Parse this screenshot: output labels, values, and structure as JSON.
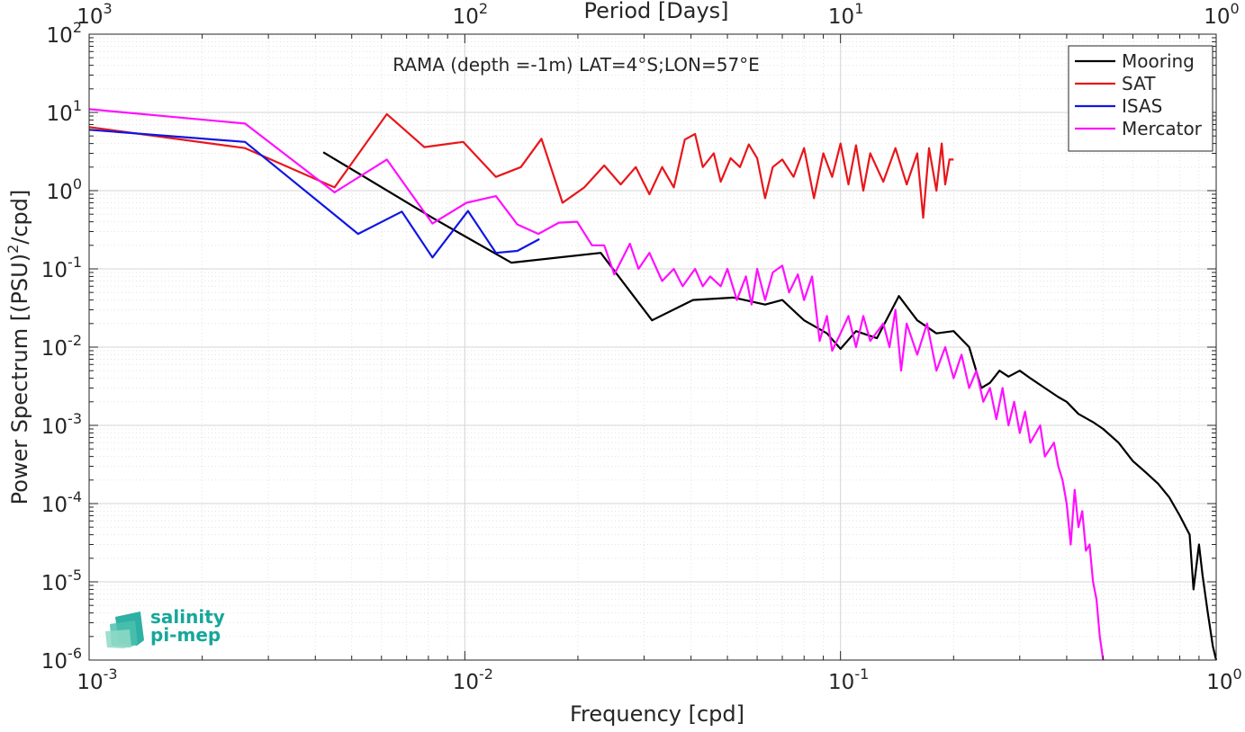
{
  "chart_data": {
    "type": "line",
    "title": "",
    "annotation": "RAMA (depth =-1m) LAT=4°S;LON=57°E",
    "xlabel": "Frequency [cpd]",
    "ylabel_main": "Power Spectrum [(PSU)",
    "ylabel_sup": "2",
    "ylabel_end": "/cpd]",
    "x2label": "Period [Days]",
    "xscale": "log",
    "yscale": "log",
    "xlim": [
      0.001,
      1
    ],
    "ylim": [
      1e-06,
      100
    ],
    "grid": true,
    "legend_position": "top-right",
    "x_ticks": [
      {
        "value": 0.001,
        "base": "10",
        "exp": "-3"
      },
      {
        "value": 0.01,
        "base": "10",
        "exp": "-2"
      },
      {
        "value": 0.1,
        "base": "10",
        "exp": "-1"
      },
      {
        "value": 1,
        "base": "10",
        "exp": "0"
      }
    ],
    "y_ticks": [
      {
        "value": 1e-06,
        "base": "10",
        "exp": "-6"
      },
      {
        "value": 1e-05,
        "base": "10",
        "exp": "-5"
      },
      {
        "value": 0.0001,
        "base": "10",
        "exp": "-4"
      },
      {
        "value": 0.001,
        "base": "10",
        "exp": "-3"
      },
      {
        "value": 0.01,
        "base": "10",
        "exp": "-2"
      },
      {
        "value": 0.1,
        "base": "10",
        "exp": "-1"
      },
      {
        "value": 1,
        "base": "10",
        "exp": "0"
      },
      {
        "value": 10,
        "base": "10",
        "exp": "1"
      },
      {
        "value": 100,
        "base": "10",
        "exp": "2"
      }
    ],
    "top_ticks": [
      {
        "freq": 0.001,
        "base": "10",
        "exp": "3"
      },
      {
        "freq": 0.01,
        "base": "10",
        "exp": "2"
      },
      {
        "freq": 0.1,
        "base": "10",
        "exp": "1"
      },
      {
        "freq": 1,
        "base": "10",
        "exp": "0"
      }
    ],
    "series": [
      {
        "name": "Mooring",
        "color": "#000000",
        "points": [
          [
            0.0042,
            3.1
          ],
          [
            0.0082,
            0.45
          ],
          [
            0.0133,
            0.12
          ],
          [
            0.023,
            0.16
          ],
          [
            0.0315,
            0.022
          ],
          [
            0.0405,
            0.04
          ],
          [
            0.052,
            0.043
          ],
          [
            0.063,
            0.035
          ],
          [
            0.07,
            0.04
          ],
          [
            0.08,
            0.022
          ],
          [
            0.092,
            0.015
          ],
          [
            0.1,
            0.0095
          ],
          [
            0.11,
            0.016
          ],
          [
            0.125,
            0.013
          ],
          [
            0.143,
            0.045
          ],
          [
            0.16,
            0.022
          ],
          [
            0.18,
            0.015
          ],
          [
            0.2,
            0.016
          ],
          [
            0.22,
            0.01
          ],
          [
            0.237,
            0.003
          ],
          [
            0.25,
            0.0035
          ],
          [
            0.265,
            0.005
          ],
          [
            0.28,
            0.0042
          ],
          [
            0.3,
            0.005
          ],
          [
            0.32,
            0.004
          ],
          [
            0.35,
            0.003
          ],
          [
            0.38,
            0.0023
          ],
          [
            0.4,
            0.002
          ],
          [
            0.43,
            0.0014
          ],
          [
            0.47,
            0.0011
          ],
          [
            0.5,
            0.0009
          ],
          [
            0.55,
            0.0006
          ],
          [
            0.6,
            0.00035
          ],
          [
            0.65,
            0.00025
          ],
          [
            0.7,
            0.00018
          ],
          [
            0.75,
            0.00012
          ],
          [
            0.8,
            7e-05
          ],
          [
            0.85,
            4e-05
          ],
          [
            0.87,
            8e-06
          ],
          [
            0.9,
            3e-05
          ],
          [
            0.92,
            1.2e-05
          ],
          [
            0.95,
            4e-06
          ],
          [
            0.98,
            1.5e-06
          ],
          [
            1.0,
            1e-06
          ]
        ]
      },
      {
        "name": "SAT",
        "color": "#e8161b",
        "points": [
          [
            0.001,
            6.5
          ],
          [
            0.0026,
            3.5
          ],
          [
            0.0045,
            1.1
          ],
          [
            0.0062,
            9.5
          ],
          [
            0.0078,
            3.6
          ],
          [
            0.0099,
            4.2
          ],
          [
            0.0121,
            1.5
          ],
          [
            0.0141,
            2.0
          ],
          [
            0.016,
            4.6
          ],
          [
            0.0182,
            0.7
          ],
          [
            0.0208,
            1.1
          ],
          [
            0.0235,
            2.1
          ],
          [
            0.026,
            1.2
          ],
          [
            0.0285,
            2.0
          ],
          [
            0.031,
            0.9
          ],
          [
            0.0335,
            2.0
          ],
          [
            0.036,
            1.1
          ],
          [
            0.0385,
            4.5
          ],
          [
            0.041,
            5.3
          ],
          [
            0.043,
            2.0
          ],
          [
            0.046,
            3.0
          ],
          [
            0.048,
            1.3
          ],
          [
            0.051,
            2.6
          ],
          [
            0.054,
            2.0
          ],
          [
            0.057,
            3.9
          ],
          [
            0.06,
            2.6
          ],
          [
            0.063,
            0.8
          ],
          [
            0.066,
            2.0
          ],
          [
            0.07,
            2.5
          ],
          [
            0.075,
            1.5
          ],
          [
            0.08,
            3.5
          ],
          [
            0.085,
            0.8
          ],
          [
            0.09,
            3.0
          ],
          [
            0.095,
            1.5
          ],
          [
            0.1,
            4.0
          ],
          [
            0.105,
            1.2
          ],
          [
            0.11,
            3.8
          ],
          [
            0.115,
            1.0
          ],
          [
            0.12,
            3.0
          ],
          [
            0.13,
            1.3
          ],
          [
            0.14,
            3.5
          ],
          [
            0.15,
            1.2
          ],
          [
            0.16,
            3.0
          ],
          [
            0.166,
            0.45
          ],
          [
            0.172,
            3.5
          ],
          [
            0.18,
            1.0
          ],
          [
            0.186,
            4.0
          ],
          [
            0.19,
            1.2
          ],
          [
            0.195,
            2.5
          ],
          [
            0.2,
            2.5
          ]
        ]
      },
      {
        "name": "ISAS",
        "color": "#1016e3",
        "points": [
          [
            0.001,
            6.0
          ],
          [
            0.0026,
            4.2
          ],
          [
            0.0052,
            0.28
          ],
          [
            0.0068,
            0.54
          ],
          [
            0.0082,
            0.14
          ],
          [
            0.0102,
            0.55
          ],
          [
            0.0121,
            0.16
          ],
          [
            0.0138,
            0.17
          ],
          [
            0.0158,
            0.24
          ]
        ]
      },
      {
        "name": "Mercator",
        "color": "#ff10ff",
        "points": [
          [
            0.001,
            11.0
          ],
          [
            0.0026,
            7.2
          ],
          [
            0.0045,
            0.95
          ],
          [
            0.0062,
            2.5
          ],
          [
            0.0082,
            0.38
          ],
          [
            0.0101,
            0.7
          ],
          [
            0.0121,
            0.85
          ],
          [
            0.0138,
            0.37
          ],
          [
            0.0157,
            0.28
          ],
          [
            0.0178,
            0.39
          ],
          [
            0.0199,
            0.4
          ],
          [
            0.0218,
            0.2
          ],
          [
            0.0235,
            0.2
          ],
          [
            0.025,
            0.085
          ],
          [
            0.0275,
            0.21
          ],
          [
            0.029,
            0.1
          ],
          [
            0.031,
            0.16
          ],
          [
            0.0335,
            0.07
          ],
          [
            0.036,
            0.1
          ],
          [
            0.038,
            0.06
          ],
          [
            0.041,
            0.1
          ],
          [
            0.043,
            0.06
          ],
          [
            0.045,
            0.08
          ],
          [
            0.048,
            0.06
          ],
          [
            0.05,
            0.1
          ],
          [
            0.053,
            0.04
          ],
          [
            0.056,
            0.08
          ],
          [
            0.058,
            0.035
          ],
          [
            0.06,
            0.1
          ],
          [
            0.063,
            0.04
          ],
          [
            0.066,
            0.09
          ],
          [
            0.07,
            0.11
          ],
          [
            0.073,
            0.05
          ],
          [
            0.077,
            0.085
          ],
          [
            0.08,
            0.04
          ],
          [
            0.084,
            0.08
          ],
          [
            0.088,
            0.012
          ],
          [
            0.092,
            0.025
          ],
          [
            0.095,
            0.009
          ],
          [
            0.1,
            0.015
          ],
          [
            0.105,
            0.025
          ],
          [
            0.11,
            0.01
          ],
          [
            0.115,
            0.025
          ],
          [
            0.12,
            0.012
          ],
          [
            0.13,
            0.02
          ],
          [
            0.135,
            0.01
          ],
          [
            0.14,
            0.03
          ],
          [
            0.145,
            0.005
          ],
          [
            0.15,
            0.02
          ],
          [
            0.16,
            0.008
          ],
          [
            0.17,
            0.02
          ],
          [
            0.18,
            0.005
          ],
          [
            0.19,
            0.01
          ],
          [
            0.2,
            0.004
          ],
          [
            0.21,
            0.008
          ],
          [
            0.22,
            0.003
          ],
          [
            0.23,
            0.005
          ],
          [
            0.24,
            0.002
          ],
          [
            0.25,
            0.003
          ],
          [
            0.26,
            0.0012
          ],
          [
            0.27,
            0.003
          ],
          [
            0.28,
            0.001
          ],
          [
            0.29,
            0.002
          ],
          [
            0.3,
            0.0008
          ],
          [
            0.31,
            0.0015
          ],
          [
            0.32,
            0.0006
          ],
          [
            0.34,
            0.001
          ],
          [
            0.35,
            0.0004
          ],
          [
            0.37,
            0.0006
          ],
          [
            0.38,
            0.0003
          ],
          [
            0.39,
            0.0002
          ],
          [
            0.4,
            0.0001
          ],
          [
            0.41,
            3e-05
          ],
          [
            0.42,
            0.00015
          ],
          [
            0.43,
            5e-05
          ],
          [
            0.44,
            8e-05
          ],
          [
            0.45,
            2.5e-05
          ],
          [
            0.46,
            3e-05
          ],
          [
            0.47,
            1e-05
          ],
          [
            0.48,
            6e-06
          ],
          [
            0.49,
            2e-06
          ],
          [
            0.5,
            1e-06
          ]
        ]
      }
    ]
  },
  "logo": {
    "line1": "salinity",
    "line2": "pi-mep",
    "color": "#17a79a"
  }
}
